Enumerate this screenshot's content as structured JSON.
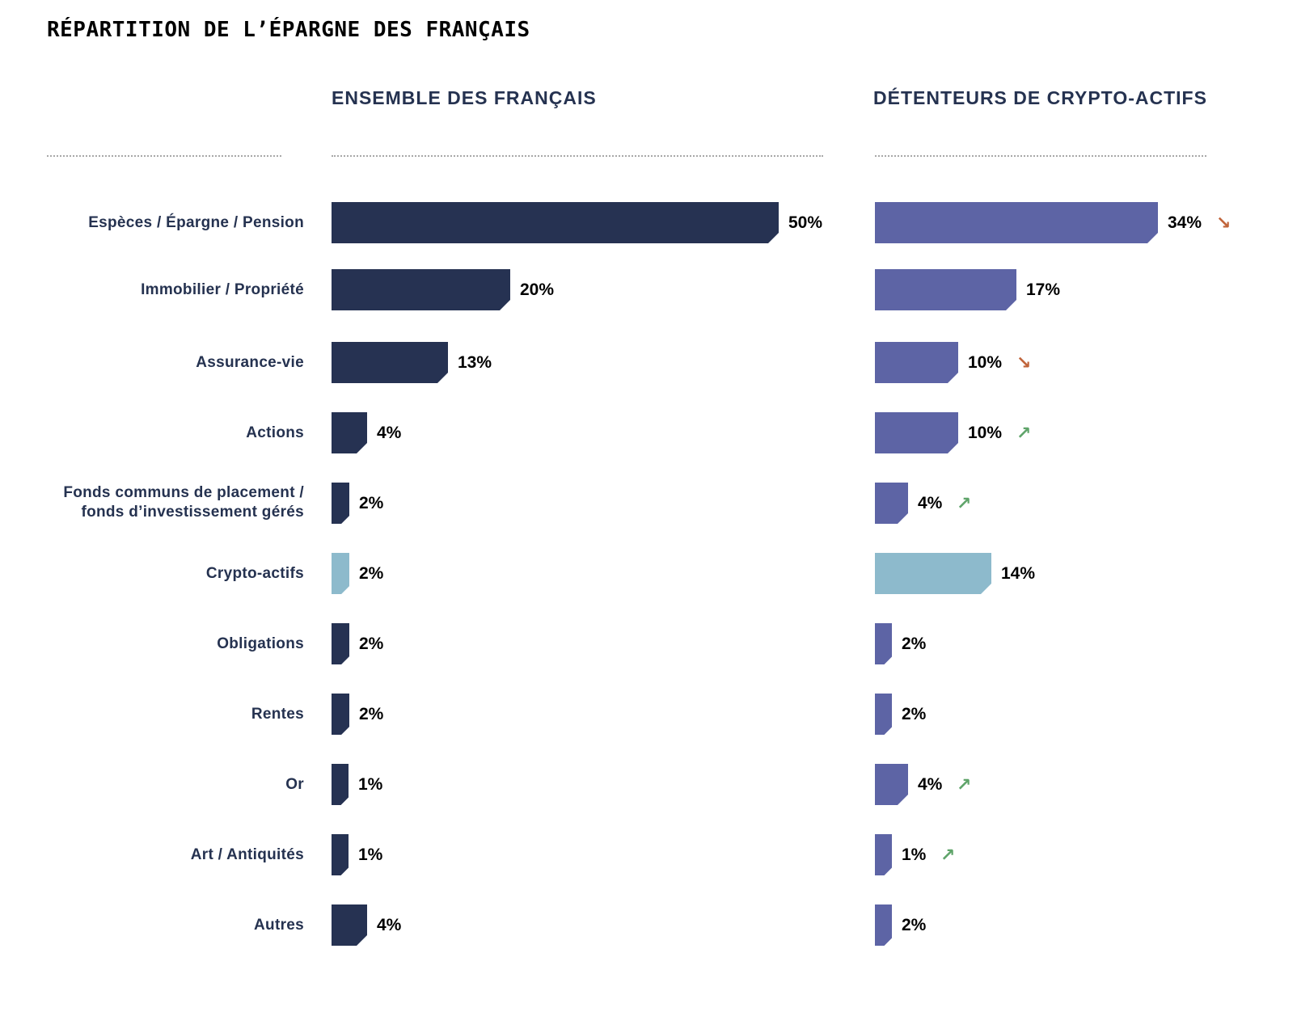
{
  "title": "RÉPARTITION DE L’ÉPARGNE DES FRANÇAIS",
  "columns": [
    {
      "label": "ENSEMBLE DES FRANÇAIS"
    },
    {
      "label": "DÉTENTEURS DE CRYPTO-ACTIFS"
    }
  ],
  "colors": {
    "left_bar": "#263252",
    "right_bar": "#5d64a5",
    "crypto_highlight": "#8dbacc",
    "trend_down": "#c0643a",
    "trend_up": "#5fa46a",
    "label_text": "#253250"
  },
  "rows": [
    {
      "label": "Espèces / Épargne / Pension",
      "left": "50%",
      "right": "34%",
      "trend": "down",
      "trend_icon": "↘"
    },
    {
      "label": "Immobilier / Propriété",
      "left": "20%",
      "right": "17%",
      "trend": "",
      "trend_icon": ""
    },
    {
      "label": "Assurance-vie",
      "left": "13%",
      "right": "10%",
      "trend": "down",
      "trend_icon": "↘"
    },
    {
      "label": "Actions",
      "left": "4%",
      "right": "10%",
      "trend": "up",
      "trend_icon": "↗"
    },
    {
      "label": "Fonds communs de placement / fonds d’investissement gérés",
      "label_line1": "Fonds communs de placement /",
      "label_line2": "fonds d’investissement gérés",
      "left": "2%",
      "right": "4%",
      "trend": "up",
      "trend_icon": "↗"
    },
    {
      "label": "Crypto-actifs",
      "left": "2%",
      "right": "14%",
      "trend": "",
      "trend_icon": "",
      "highlight": true
    },
    {
      "label": "Obligations",
      "left": "2%",
      "right": "2%",
      "trend": "",
      "trend_icon": ""
    },
    {
      "label": "Rentes",
      "left": "2%",
      "right": "2%",
      "trend": "",
      "trend_icon": ""
    },
    {
      "label": "Or",
      "left": "1%",
      "right": "4%",
      "trend": "up",
      "trend_icon": "↗"
    },
    {
      "label": "Art / Antiquités",
      "left": "1%",
      "right": "1%",
      "trend": "up",
      "trend_icon": "↗"
    },
    {
      "label": "Autres",
      "left": "4%",
      "right": "2%",
      "trend": "",
      "trend_icon": ""
    }
  ],
  "chart_data": [
    {
      "type": "bar",
      "orientation": "horizontal",
      "title": "RÉPARTITION DE L’ÉPARGNE DES FRANÇAIS — ENSEMBLE DES FRANÇAIS",
      "categories": [
        "Espèces / Épargne / Pension",
        "Immobilier / Propriété",
        "Assurance-vie",
        "Actions",
        "Fonds communs de placement / fonds d’investissement gérés",
        "Crypto-actifs",
        "Obligations",
        "Rentes",
        "Or",
        "Art / Antiquités",
        "Autres"
      ],
      "values": [
        50,
        20,
        13,
        4,
        2,
        2,
        2,
        2,
        1,
        1,
        4
      ],
      "unit": "%",
      "highlight_category": "Crypto-actifs",
      "xlabel": "",
      "ylabel": "",
      "grid": false,
      "legend": false
    },
    {
      "type": "bar",
      "orientation": "horizontal",
      "title": "RÉPARTITION DE L’ÉPARGNE DES FRANÇAIS — DÉTENTEURS DE CRYPTO-ACTIFS",
      "categories": [
        "Espèces / Épargne / Pension",
        "Immobilier / Propriété",
        "Assurance-vie",
        "Actions",
        "Fonds communs de placement / fonds d’investissement gérés",
        "Crypto-actifs",
        "Obligations",
        "Rentes",
        "Or",
        "Art / Antiquités",
        "Autres"
      ],
      "values": [
        34,
        17,
        10,
        10,
        4,
        14,
        2,
        2,
        4,
        1,
        2
      ],
      "unit": "%",
      "annotations": {
        "Espèces / Épargne / Pension": "down",
        "Assurance-vie": "down",
        "Actions": "up",
        "Fonds communs de placement / fonds d’investissement gérés": "up",
        "Or": "up",
        "Art / Antiquités": "up"
      },
      "highlight_category": "Crypto-actifs",
      "xlabel": "",
      "ylabel": "",
      "grid": false,
      "legend": false
    }
  ]
}
